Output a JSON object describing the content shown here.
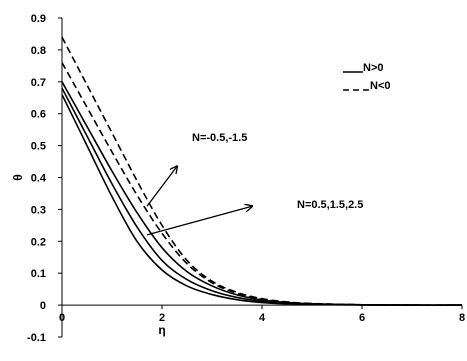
{
  "chart_data": {
    "type": "line",
    "title": "",
    "xlabel": "η",
    "ylabel": "θ",
    "xlim": [
      0,
      8
    ],
    "ylim": [
      -0.1,
      0.9
    ],
    "xticks": [
      0,
      2,
      4,
      6,
      8
    ],
    "yticks": [
      -0.1,
      0,
      0.1,
      0.2,
      0.3,
      0.4,
      0.5,
      0.6,
      0.7,
      0.8,
      0.9
    ],
    "xtick_labels": [
      "0",
      "2",
      "4",
      "6",
      "8"
    ],
    "ytick_labels": [
      "-0.1",
      "0",
      "0.1",
      "0.2",
      "0.3",
      "0.4",
      "0.5",
      "0.6",
      "0.7",
      "0.8",
      "0.9"
    ],
    "grid": false,
    "legend": {
      "placement": "top-right",
      "entries": [
        {
          "label": "N>0",
          "style": "solid"
        },
        {
          "label": "N<0",
          "style": "dashed"
        }
      ]
    },
    "annotations": [
      {
        "text": "N=-0.5,-1.5",
        "arrow_from": [
          1.7,
          0.31
        ],
        "arrow_to": [
          2.3,
          0.435
        ],
        "text_at": [
          2.6,
          0.515
        ]
      },
      {
        "text": "N=0.5,1.5,2.5",
        "arrow_from": [
          1.7,
          0.22
        ],
        "arrow_to": [
          3.8,
          0.31
        ],
        "text_at": [
          4.7,
          0.305
        ]
      }
    ],
    "series": [
      {
        "group": "N<0",
        "style": "dashed",
        "x": [
          0,
          0.5,
          1,
          1.5,
          2,
          2.5,
          3,
          3.5,
          4,
          4.5,
          5,
          6,
          7,
          8
        ],
        "y": [
          0.84,
          0.69,
          0.54,
          0.39,
          0.25,
          0.14,
          0.075,
          0.04,
          0.02,
          0.01,
          0.005,
          0.001,
          0,
          0
        ]
      },
      {
        "group": "N<0",
        "style": "dashed",
        "x": [
          0,
          0.5,
          1,
          1.5,
          2,
          2.5,
          3,
          3.5,
          4,
          4.5,
          5,
          6,
          7,
          8
        ],
        "y": [
          0.76,
          0.62,
          0.48,
          0.345,
          0.225,
          0.13,
          0.07,
          0.037,
          0.018,
          0.009,
          0.004,
          0.001,
          0,
          0
        ]
      },
      {
        "group": "N>0",
        "style": "solid",
        "x": [
          0,
          0.5,
          1,
          1.5,
          2,
          2.5,
          3,
          3.5,
          4,
          4.5,
          5,
          6,
          7,
          8
        ],
        "y": [
          0.7,
          0.56,
          0.42,
          0.29,
          0.18,
          0.105,
          0.06,
          0.032,
          0.016,
          0.008,
          0.004,
          0.001,
          0,
          0
        ]
      },
      {
        "group": "N>0",
        "style": "solid",
        "x": [
          0,
          0.5,
          1,
          1.5,
          2,
          2.5,
          3,
          3.5,
          4,
          4.5,
          5,
          6,
          7,
          8
        ],
        "y": [
          0.68,
          0.53,
          0.38,
          0.245,
          0.14,
          0.08,
          0.045,
          0.024,
          0.012,
          0.006,
          0.003,
          0.001,
          0,
          0
        ]
      },
      {
        "group": "N>0",
        "style": "solid",
        "x": [
          0,
          0.5,
          1,
          1.5,
          2,
          2.5,
          3,
          3.5,
          4,
          4.5,
          5,
          6,
          7,
          8
        ],
        "y": [
          0.66,
          0.5,
          0.34,
          0.2,
          0.11,
          0.06,
          0.033,
          0.017,
          0.008,
          0.004,
          0.002,
          0.0005,
          0,
          0
        ]
      }
    ]
  }
}
